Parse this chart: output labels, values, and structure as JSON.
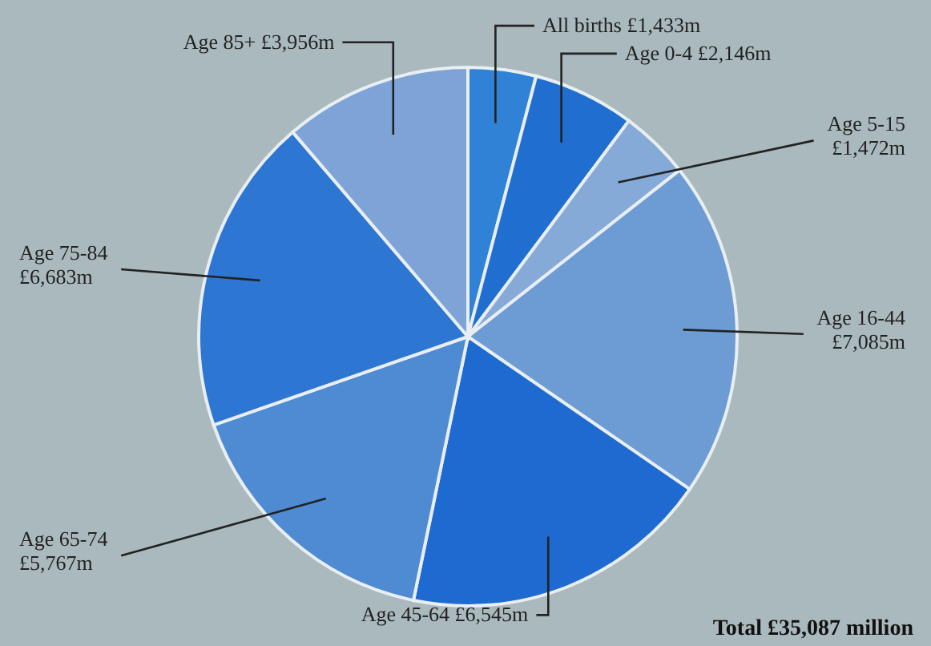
{
  "chart_data": {
    "type": "pie",
    "categories": [
      "All births",
      "Age 0-4",
      "Age 5-15",
      "Age 16-44",
      "Age 45-64",
      "Age 65-74",
      "Age 75-84",
      "Age 85+"
    ],
    "values": [
      1433,
      2146,
      1472,
      7085,
      6545,
      5767,
      6683,
      3956
    ],
    "value_labels": [
      "£1,433m",
      "£2,146m",
      "£1,472m",
      "£7,085m",
      "£6,545m",
      "£5,767m",
      "£6,683m",
      "£3,956m"
    ],
    "colors": [
      "#2f82d6",
      "#1f6ed0",
      "#86aad8",
      "#6d9bd3",
      "#1e6ad0",
      "#4f8bd3",
      "#2d76d2",
      "#7ea3d6"
    ],
    "annotations": [
      "Total £35,087 million"
    ]
  }
}
